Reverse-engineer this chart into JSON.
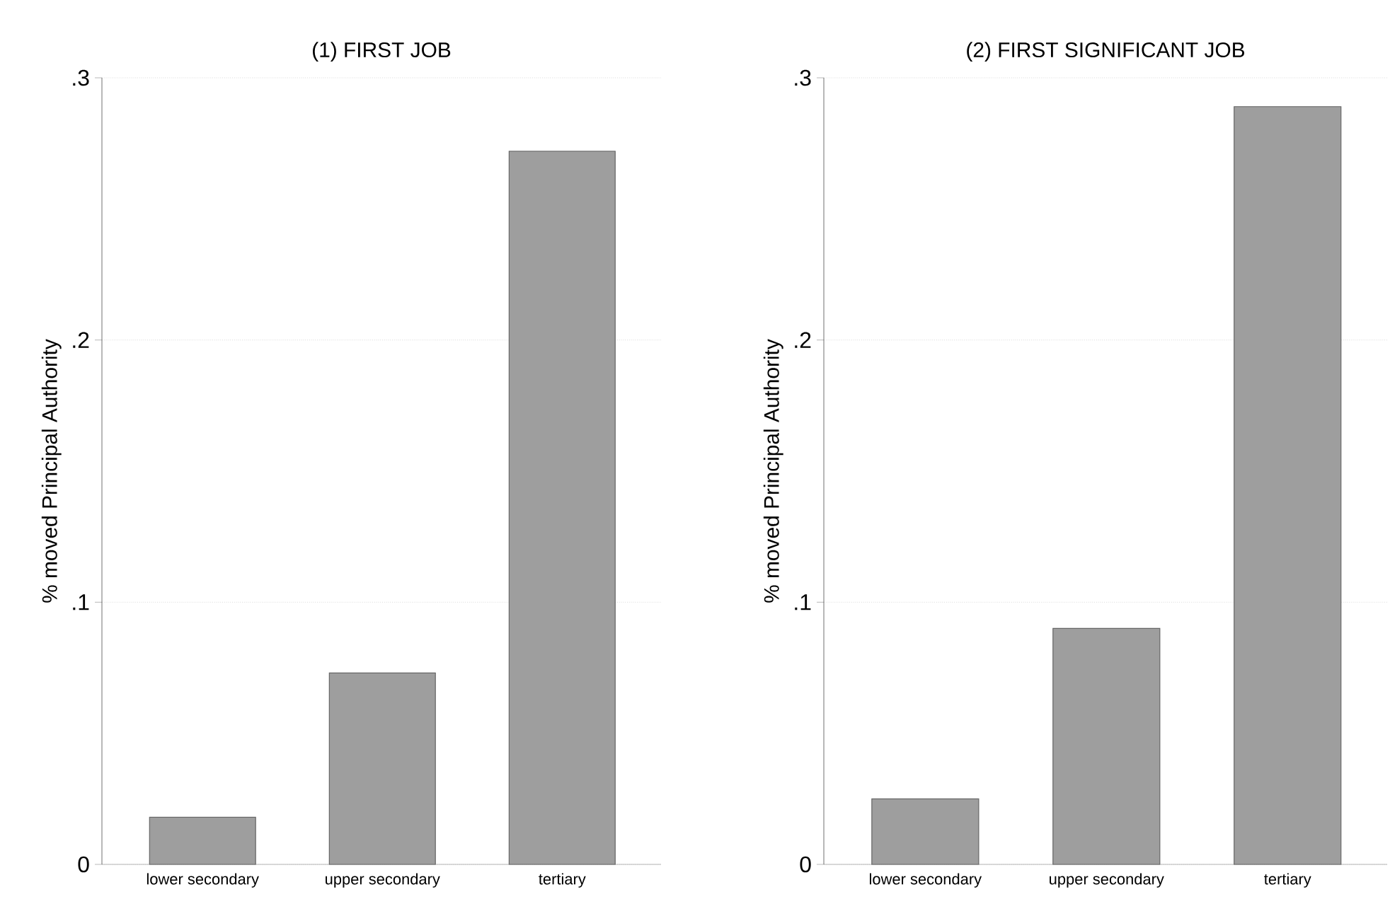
{
  "chart_data": [
    {
      "type": "bar",
      "title": "(1) FIRST JOB",
      "ylabel": "% moved Principal Authority",
      "categories": [
        "lower secondary",
        "upper secondary",
        "tertiary"
      ],
      "values": [
        0.018,
        0.073,
        0.272
      ],
      "color": "#9e9e9e",
      "ylim": [
        0,
        0.3
      ],
      "yticks": [
        0,
        {
          "value": 0.1,
          "label": ".1"
        },
        {
          "value": 0.2,
          "label": ".2"
        },
        {
          "value": 0.3,
          "label": ".3"
        }
      ],
      "grid": "y"
    },
    {
      "type": "bar",
      "title": "(2) FIRST SIGNIFICANT JOB",
      "ylabel": "% moved Principal Authority",
      "categories": [
        "lower secondary",
        "upper secondary",
        "tertiary"
      ],
      "values": [
        0.025,
        0.09,
        0.289
      ],
      "color": "#9e9e9e",
      "ylim": [
        0,
        0.3
      ],
      "yticks": [
        0,
        {
          "value": 0.1,
          "label": ".1"
        },
        {
          "value": 0.2,
          "label": ".2"
        },
        {
          "value": 0.3,
          "label": ".3"
        }
      ],
      "grid": "y"
    }
  ]
}
